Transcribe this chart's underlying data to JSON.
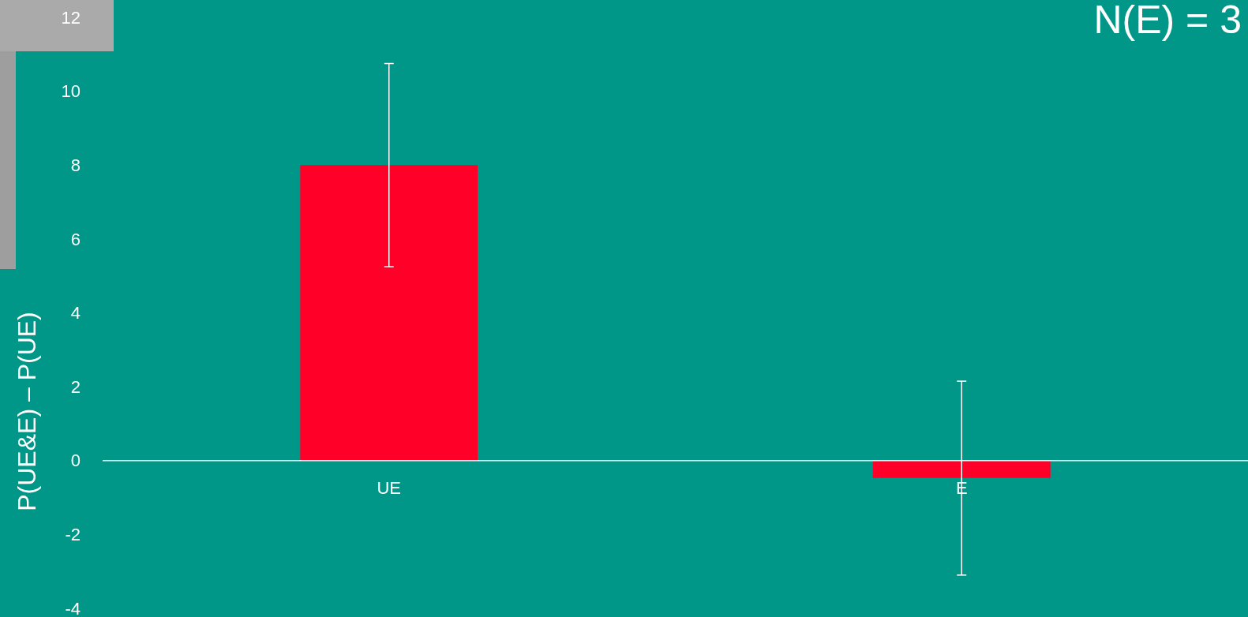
{
  "chart_data": {
    "type": "bar",
    "title": "N(E) = 3",
    "ylabel": "P(UE&E) – P(UE)",
    "categories": [
      "UE",
      "E"
    ],
    "series": [
      {
        "color": "#ff0029",
        "values": [
          8.0,
          -0.47
        ],
        "errors": [
          [
            5.25,
            10.75
          ],
          [
            -3.1,
            2.15
          ]
        ]
      }
    ],
    "ylim": [
      -4,
      12
    ],
    "yticks": [
      -4,
      -2,
      0,
      2,
      4,
      6,
      8,
      10,
      12
    ]
  }
}
